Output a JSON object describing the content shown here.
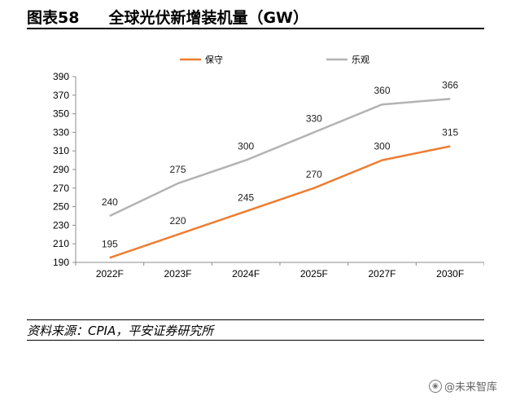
{
  "figure": {
    "number": "图表58",
    "title": "全球光伏新增装机量（GW）"
  },
  "source": "资料来源：CPIA，平安证券研究所",
  "watermark": "@未来智库",
  "colors": {
    "conservative": "#ED7D31",
    "optimistic": "#B3B3B3",
    "axis": "#8c8c8c"
  },
  "chart_data": {
    "type": "line",
    "title": "",
    "xlabel": "",
    "ylabel": "",
    "categories": [
      "2022F",
      "2023F",
      "2024F",
      "2025F",
      "2027F",
      "2030F"
    ],
    "ylim": [
      190,
      390
    ],
    "yticks": [
      190,
      210,
      230,
      250,
      270,
      290,
      310,
      330,
      350,
      370,
      390
    ],
    "legend_position": "top",
    "grid": false,
    "series": [
      {
        "name": "保守",
        "color": "#ED7D31",
        "values": [
          195,
          220,
          245,
          270,
          300,
          315
        ]
      },
      {
        "name": "乐观",
        "color": "#B3B3B3",
        "values": [
          240,
          275,
          300,
          330,
          360,
          366
        ]
      }
    ]
  }
}
